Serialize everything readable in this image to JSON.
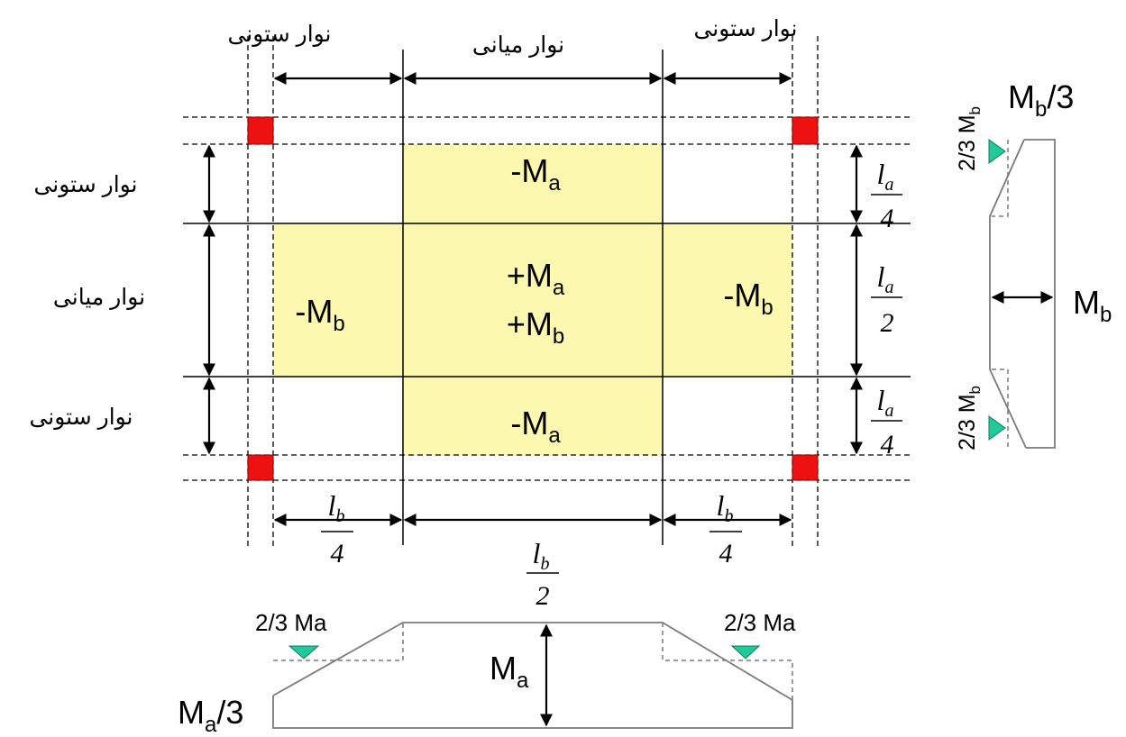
{
  "strips": {
    "column_strip": "نوار ستونی",
    "middle_strip": "نوار میانی"
  },
  "panel_moments": {
    "neg_ma_symbol": "-M",
    "pos_ma_symbol": "+M",
    "neg_mb_symbol": "-M",
    "pos_mb_symbol": "+M",
    "sub_a": "a",
    "sub_b": "b"
  },
  "dimensions": {
    "l_a": "l",
    "l_b": "l",
    "sub_a": "a",
    "sub_b": "b",
    "quarter": "4",
    "half": "2"
  },
  "side_diagram": {
    "top_label_prefix": "M",
    "top_label_sub": "b",
    "top_label_suffix": "/3",
    "two_thirds_prefix": "2/3 M",
    "two_thirds_sub": "b",
    "mid_label": "M",
    "mid_sub": "b"
  },
  "bottom_diagram": {
    "two_thirds_label": "2/3 Ma",
    "mid_label": "M",
    "mid_sub": "a",
    "end_label_prefix": "M",
    "end_label_sub": "a",
    "end_label_suffix": "/3"
  },
  "colors": {
    "panel_fill": "#fcf8b0",
    "column_fill": "#ee1111",
    "marker_fill": "#22c99a",
    "diagram_line": "#7a7a7a"
  }
}
